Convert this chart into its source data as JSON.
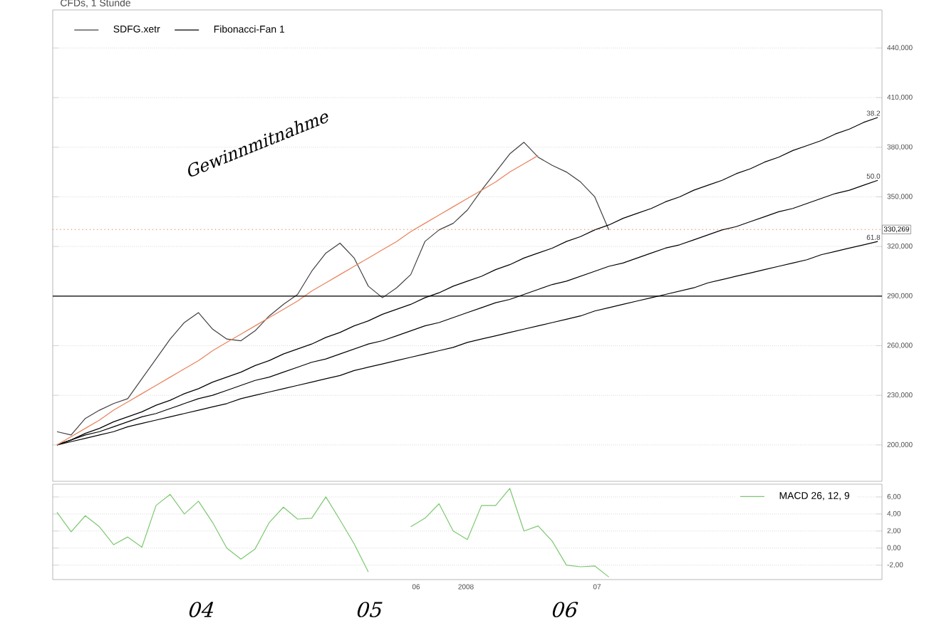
{
  "chart_data": [
    {
      "type": "line",
      "title": "CFDs, 1 Stunde",
      "ylim": [
        178000,
        463000
      ],
      "categories": [
        null,
        null,
        null,
        null,
        null,
        null,
        null,
        null,
        null,
        null,
        null,
        null,
        null,
        null,
        null,
        null,
        null,
        null,
        null,
        null,
        null,
        null,
        null,
        null,
        null,
        null,
        null,
        null,
        null,
        null,
        null,
        null,
        null,
        null,
        null,
        null,
        null,
        null,
        null,
        null,
        null,
        null,
        null,
        null,
        null,
        null,
        null,
        null,
        null,
        null,
        null,
        null,
        null,
        null,
        null,
        null,
        null,
        null,
        null
      ],
      "yticks": [
        {
          "value": 200000,
          "label": "200,000"
        },
        {
          "value": 230000,
          "label": "230,000"
        },
        {
          "value": 260000,
          "label": "260,000"
        },
        {
          "value": 290000,
          "label": "290,000"
        },
        {
          "value": 320000,
          "label": "320,000"
        },
        {
          "value": 350000,
          "label": "350,000"
        },
        {
          "value": 380000,
          "label": "380,000"
        },
        {
          "value": 410000,
          "label": "410,000"
        },
        {
          "value": 440000,
          "label": "440,000"
        }
      ],
      "tick_labels": "y",
      "grid": "y",
      "legend": "top left",
      "series": [
        {
          "name": "SDFG.xetr",
          "color": "#404040",
          "values": [
            208000,
            206000,
            216000,
            221000,
            225000,
            228000,
            240000,
            252000,
            264000,
            274000,
            280000,
            270000,
            264000,
            263000,
            269000,
            278000,
            285000,
            291000,
            305000,
            316000,
            322000,
            313000,
            296000,
            289000,
            295000,
            303000,
            323000,
            330000,
            334000,
            342000,
            354000,
            365000,
            376000,
            383000,
            374000,
            369000,
            365000,
            359000,
            350000,
            330000,
            null,
            null,
            null,
            null,
            null,
            null,
            null,
            null,
            null,
            null,
            null,
            null,
            null,
            null,
            null,
            null,
            null,
            null,
            null
          ]
        },
        {
          "name": "Fibonacci-Fan 1",
          "color": "#000000",
          "values": [
            200000,
            203000,
            207000,
            210000,
            214000,
            217000,
            220000,
            224000,
            227000,
            231000,
            234000,
            238000,
            241000,
            244000,
            248000,
            251000,
            255000,
            258000,
            261000,
            265000,
            268000,
            272000,
            275000,
            279000,
            282000,
            285000,
            289000,
            292000,
            296000,
            299000,
            302000,
            306000,
            309000,
            313000,
            316000,
            319000,
            323000,
            326000,
            330000,
            333000,
            337000,
            340000,
            343000,
            347000,
            350000,
            354000,
            357000,
            360000,
            364000,
            367000,
            371000,
            374000,
            378000,
            381000,
            384000,
            388000,
            391000,
            395000,
            398000
          ]
        },
        {
          "color": "#000000",
          "values": [
            200000,
            203000,
            206000,
            208000,
            211000,
            214000,
            217000,
            219000,
            222000,
            225000,
            228000,
            230000,
            233000,
            236000,
            239000,
            241000,
            244000,
            247000,
            250000,
            252000,
            255000,
            258000,
            261000,
            263000,
            266000,
            269000,
            272000,
            274000,
            277000,
            280000,
            283000,
            286000,
            288000,
            291000,
            294000,
            297000,
            299000,
            302000,
            305000,
            308000,
            310000,
            313000,
            316000,
            319000,
            321000,
            324000,
            327000,
            330000,
            332000,
            335000,
            338000,
            341000,
            343000,
            346000,
            349000,
            352000,
            354000,
            357000,
            360000
          ]
        },
        {
          "color": "#000000",
          "values": [
            200000,
            202000,
            204000,
            206000,
            208000,
            211000,
            213000,
            215000,
            217000,
            219000,
            221000,
            223000,
            225000,
            228000,
            230000,
            232000,
            234000,
            236000,
            238000,
            240000,
            242000,
            245000,
            247000,
            249000,
            251000,
            253000,
            255000,
            257000,
            259000,
            262000,
            264000,
            266000,
            268000,
            270000,
            272000,
            274000,
            276000,
            278000,
            281000,
            283000,
            285000,
            287000,
            289000,
            291000,
            293000,
            295000,
            298000,
            300000,
            302000,
            304000,
            306000,
            308000,
            310000,
            312000,
            315000,
            317000,
            319000,
            321000,
            323000
          ]
        },
        {
          "color": "#e8825a",
          "values": [
            200000,
            205000,
            210000,
            215000,
            221000,
            226000,
            231000,
            236000,
            241000,
            246000,
            251000,
            257000,
            262000,
            267000,
            272000,
            277000,
            282000,
            287000,
            293000,
            298000,
            303000,
            308000,
            313000,
            318000,
            323000,
            329000,
            334000,
            339000,
            344000,
            349000,
            354000,
            359000,
            365000,
            370000,
            375000,
            null,
            null,
            null,
            null,
            null,
            null,
            null,
            null,
            null,
            null,
            null,
            null,
            null,
            null,
            null,
            null,
            null,
            null,
            null,
            null,
            null,
            null,
            null,
            null
          ]
        }
      ],
      "ref_lines": [
        {
          "axis": "y",
          "value": 330269,
          "label": "330,269",
          "color": "#e07040",
          "line_style": "dotted"
        },
        {
          "axis": "y",
          "value": 290000,
          "color": "#000000",
          "line_style": "solid"
        }
      ],
      "annotations": [
        {
          "text": "38.2",
          "y": 398000
        },
        {
          "text": "50.0",
          "y": 360000
        },
        {
          "text": "61.8",
          "y": 323000
        },
        "Gewinnmitnahme"
      ]
    },
    {
      "type": "line",
      "ylim": [
        -3.7,
        7.5
      ],
      "categories": [
        null,
        null,
        null,
        null,
        null,
        null,
        null,
        null,
        null,
        null,
        null,
        null,
        null,
        null,
        null,
        null,
        null,
        null,
        null,
        null,
        null,
        null,
        null,
        null,
        null,
        null,
        null,
        null,
        null,
        null,
        null,
        null,
        null,
        null,
        null,
        null,
        null,
        null,
        null,
        null,
        null,
        null,
        null,
        null,
        null,
        null,
        null,
        null,
        null,
        null,
        null,
        null,
        null,
        null,
        null,
        null,
        null,
        null,
        null
      ],
      "yticks": [
        {
          "value": -2,
          "label": "-2,00"
        },
        {
          "value": 0,
          "label": "0,00"
        },
        {
          "value": 2,
          "label": "2,00"
        },
        {
          "value": 4,
          "label": "4,00"
        },
        {
          "value": 6,
          "label": "6,00"
        }
      ],
      "tick_labels": "y",
      "grid": "y",
      "legend": "top right",
      "series": [
        {
          "name": "MACD 26, 12, 9",
          "color": "#7cc870",
          "values": [
            4.2,
            1.9,
            3.8,
            2.5,
            0.4,
            1.3,
            0.1,
            5.0,
            6.3,
            4.0,
            5.5,
            3.0,
            0.0,
            -1.3,
            -0.1,
            3.0,
            4.8,
            3.4,
            3.5,
            6.0,
            3.3,
            0.5,
            -2.8,
            null,
            null,
            2.5,
            3.5,
            5.2,
            2.0,
            1.0,
            5.0,
            5.0,
            7.0,
            2.0,
            2.6,
            0.8,
            -2.0,
            -2.2,
            -2.1,
            -3.4,
            null,
            null,
            null,
            null,
            null,
            null,
            null,
            null,
            null,
            null,
            null,
            null,
            null,
            null,
            null,
            null,
            null,
            null,
            null
          ]
        }
      ],
      "annotations": [
        "06",
        "2008",
        "07",
        "04",
        "05",
        "06"
      ]
    }
  ]
}
